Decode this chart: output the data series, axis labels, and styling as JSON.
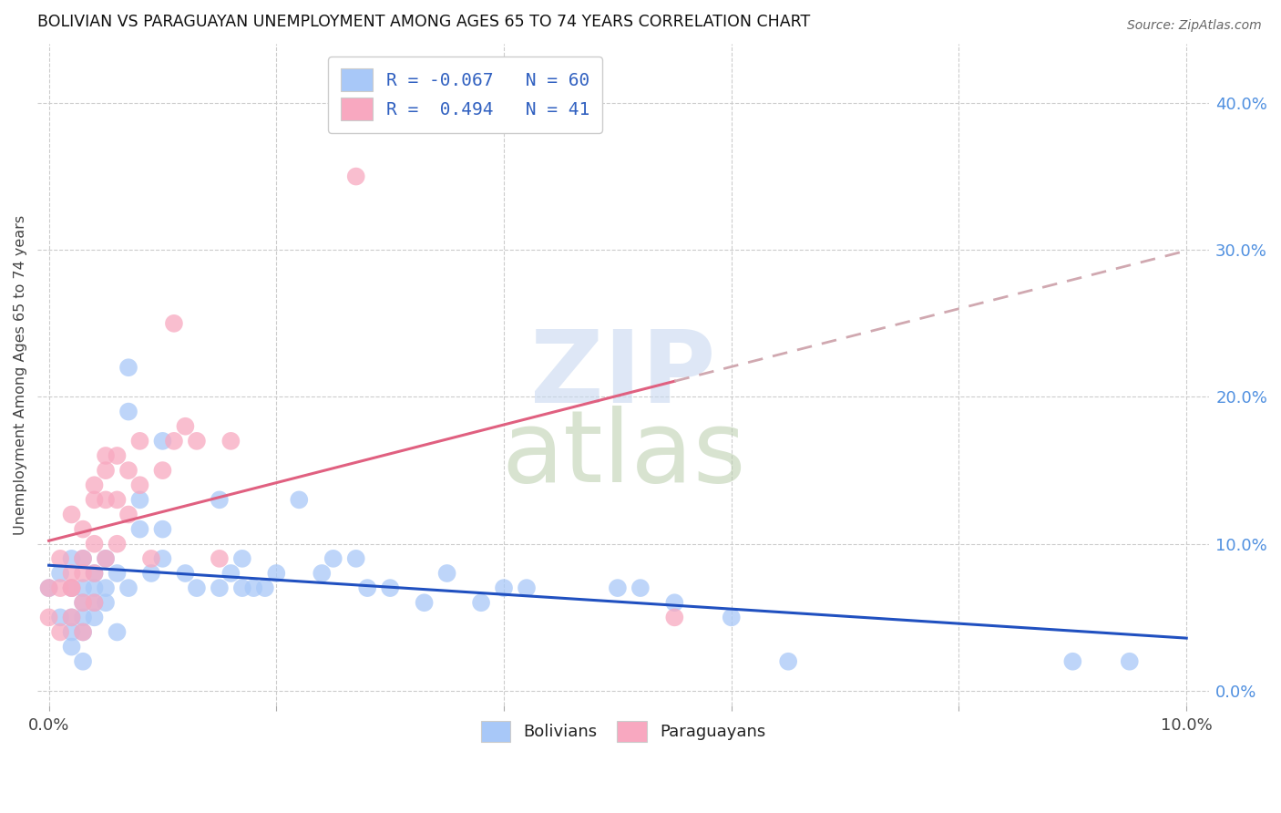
{
  "title": "BOLIVIAN VS PARAGUAYAN UNEMPLOYMENT AMONG AGES 65 TO 74 YEARS CORRELATION CHART",
  "source": "Source: ZipAtlas.com",
  "ylabel": "Unemployment Among Ages 65 to 74 years",
  "xlim": [
    0.0,
    0.1
  ],
  "ylim": [
    0.0,
    0.44
  ],
  "xticks": [
    0.0,
    0.02,
    0.04,
    0.06,
    0.08,
    0.1
  ],
  "yticks": [
    0.0,
    0.1,
    0.2,
    0.3,
    0.4
  ],
  "ytick_labels_right": [
    "0.0%",
    "10.0%",
    "20.0%",
    "30.0%",
    "40.0%"
  ],
  "xtick_labels": [
    "0.0%",
    "",
    "",
    "",
    "",
    "10.0%"
  ],
  "bolivians_color": "#a8c8f8",
  "paraguayans_color": "#f8a8c0",
  "trendline_bolivia_color": "#2050c0",
  "trendline_paraguay_color": "#e06080",
  "trendline_dashed_color": "#d0a8b0",
  "watermark_zip_color": "#c8d8f0",
  "watermark_atlas_color": "#b8ccaa",
  "legend_label_1": "R = -0.067   N = 60",
  "legend_label_2": "R =  0.494   N = 41",
  "bolivians_x": [
    0.0,
    0.001,
    0.001,
    0.002,
    0.002,
    0.002,
    0.002,
    0.002,
    0.003,
    0.003,
    0.003,
    0.003,
    0.003,
    0.003,
    0.004,
    0.004,
    0.004,
    0.004,
    0.005,
    0.005,
    0.005,
    0.006,
    0.006,
    0.007,
    0.007,
    0.007,
    0.008,
    0.008,
    0.009,
    0.01,
    0.01,
    0.01,
    0.012,
    0.013,
    0.015,
    0.015,
    0.016,
    0.017,
    0.017,
    0.018,
    0.019,
    0.02,
    0.022,
    0.024,
    0.025,
    0.027,
    0.028,
    0.03,
    0.033,
    0.035,
    0.038,
    0.04,
    0.042,
    0.05,
    0.052,
    0.055,
    0.06,
    0.065,
    0.09,
    0.095
  ],
  "bolivians_y": [
    0.07,
    0.08,
    0.05,
    0.07,
    0.05,
    0.09,
    0.04,
    0.03,
    0.07,
    0.06,
    0.05,
    0.09,
    0.04,
    0.02,
    0.07,
    0.06,
    0.05,
    0.08,
    0.09,
    0.07,
    0.06,
    0.08,
    0.04,
    0.22,
    0.07,
    0.19,
    0.13,
    0.11,
    0.08,
    0.11,
    0.09,
    0.17,
    0.08,
    0.07,
    0.07,
    0.13,
    0.08,
    0.07,
    0.09,
    0.07,
    0.07,
    0.08,
    0.13,
    0.08,
    0.09,
    0.09,
    0.07,
    0.07,
    0.06,
    0.08,
    0.06,
    0.07,
    0.07,
    0.07,
    0.07,
    0.06,
    0.05,
    0.02,
    0.02,
    0.02
  ],
  "paraguayans_x": [
    0.0,
    0.0,
    0.001,
    0.001,
    0.001,
    0.002,
    0.002,
    0.002,
    0.002,
    0.002,
    0.003,
    0.003,
    0.003,
    0.003,
    0.003,
    0.004,
    0.004,
    0.004,
    0.004,
    0.004,
    0.005,
    0.005,
    0.005,
    0.005,
    0.006,
    0.006,
    0.006,
    0.007,
    0.007,
    0.008,
    0.008,
    0.009,
    0.01,
    0.011,
    0.011,
    0.012,
    0.013,
    0.015,
    0.016,
    0.027,
    0.055
  ],
  "paraguayans_y": [
    0.07,
    0.05,
    0.09,
    0.07,
    0.04,
    0.08,
    0.07,
    0.12,
    0.07,
    0.05,
    0.11,
    0.09,
    0.08,
    0.06,
    0.04,
    0.13,
    0.14,
    0.1,
    0.08,
    0.06,
    0.16,
    0.15,
    0.13,
    0.09,
    0.16,
    0.13,
    0.1,
    0.15,
    0.12,
    0.17,
    0.14,
    0.09,
    0.15,
    0.25,
    0.17,
    0.18,
    0.17,
    0.09,
    0.17,
    0.35,
    0.05
  ]
}
